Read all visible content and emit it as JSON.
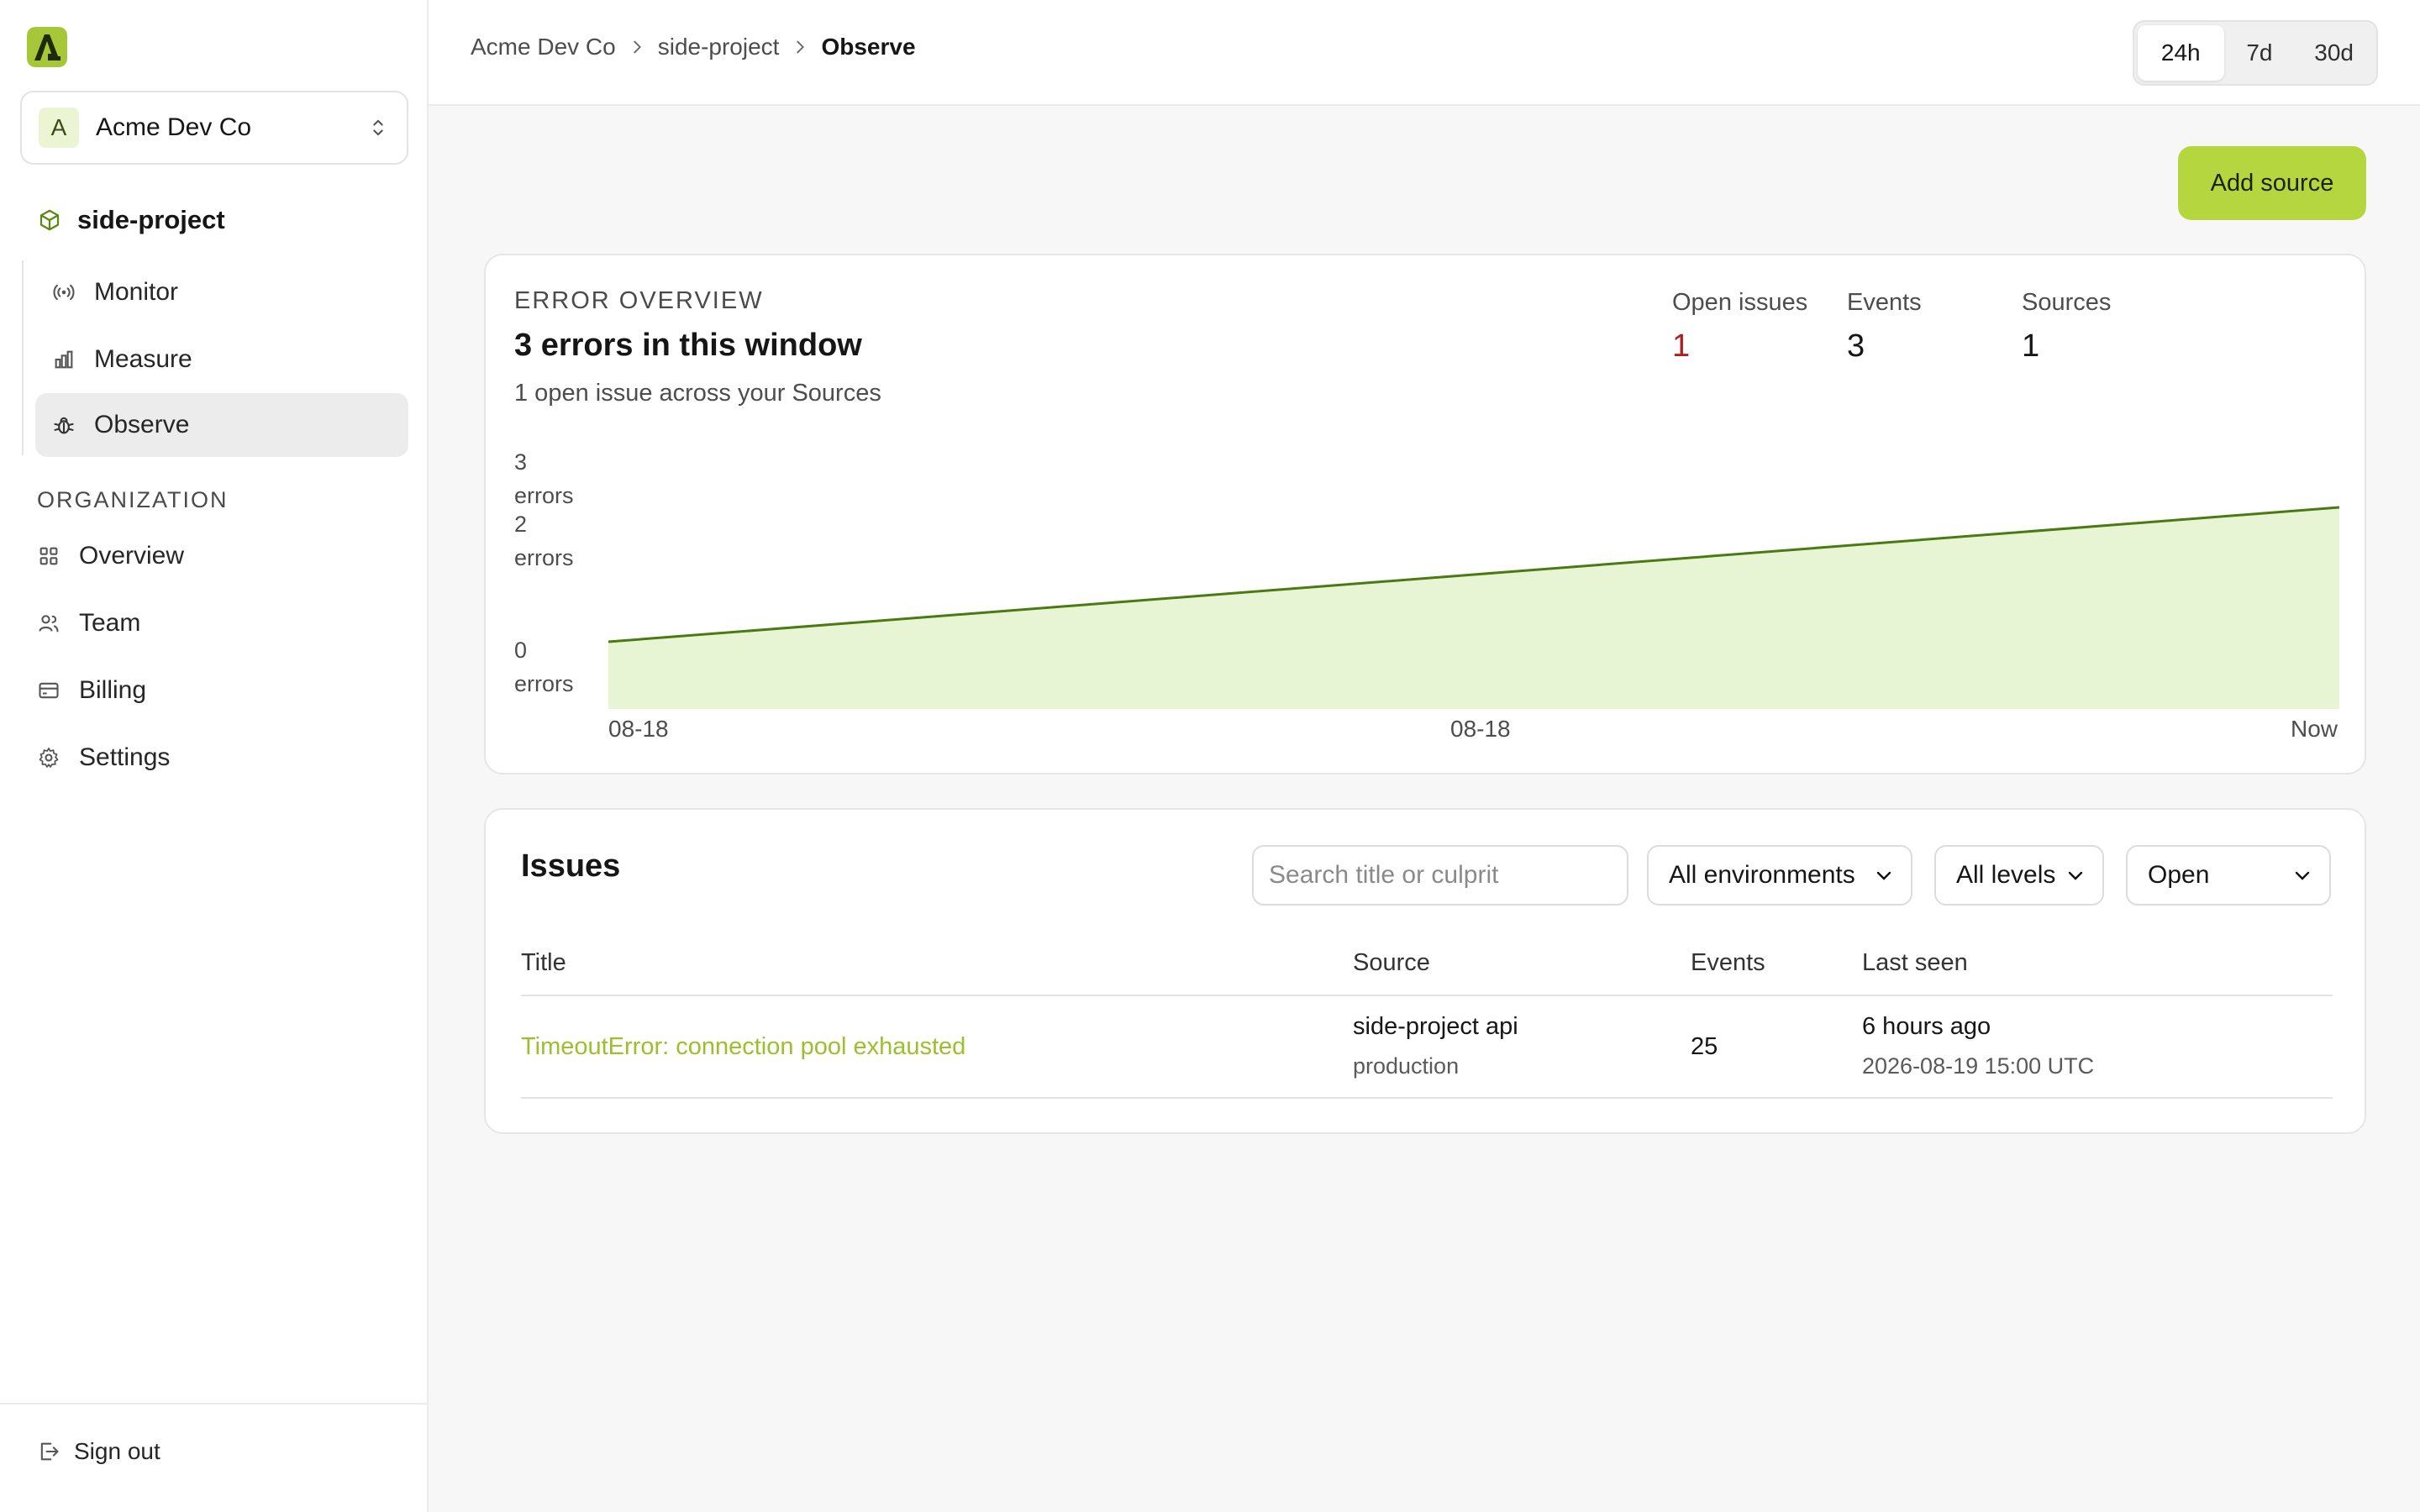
{
  "org": {
    "avatar_letter": "A",
    "name": "Acme Dev Co"
  },
  "project": {
    "name": "side-project"
  },
  "nav": {
    "project_items": [
      {
        "label": "Monitor",
        "icon": "broadcast-icon"
      },
      {
        "label": "Measure",
        "icon": "bar-chart-icon"
      },
      {
        "label": "Observe",
        "icon": "bug-icon",
        "active": true
      }
    ],
    "section_label": "ORGANIZATION",
    "org_items": [
      {
        "label": "Overview",
        "icon": "grid-icon"
      },
      {
        "label": "Team",
        "icon": "users-icon"
      },
      {
        "label": "Billing",
        "icon": "credit-card-icon"
      },
      {
        "label": "Settings",
        "icon": "gear-icon"
      }
    ],
    "signout_label": "Sign out"
  },
  "breadcrumb": [
    "Acme Dev Co",
    "side-project",
    "Observe"
  ],
  "time_range": {
    "options": [
      "24h",
      "7d",
      "30d"
    ],
    "selected": "24h"
  },
  "add_source_label": "Add source",
  "overview": {
    "label": "ERROR OVERVIEW",
    "title": "3 errors in this window",
    "subtitle": "1 open issue across your Sources",
    "stats": [
      {
        "label": "Open issues",
        "value": "1",
        "highlight": true
      },
      {
        "label": "Events",
        "value": "3"
      },
      {
        "label": "Sources",
        "value": "1"
      }
    ]
  },
  "chart_data": {
    "type": "area",
    "x": [
      "08-18",
      "08-18",
      "Now"
    ],
    "y_tick_labels": [
      "3 errors",
      "2 errors",
      "0 errors"
    ],
    "series": [
      {
        "values": [
          1,
          2,
          3
        ]
      }
    ],
    "ylim": [
      0,
      3.5
    ],
    "grid": false,
    "line_color": "#4a7a12",
    "fill_color": "#e8f5d4"
  },
  "issues": {
    "title": "Issues",
    "search_placeholder": "Search title or culprit",
    "filters": {
      "environment": "All environments",
      "level": "All levels",
      "status": "Open"
    },
    "columns": [
      "Title",
      "Source",
      "Events",
      "Last seen"
    ],
    "rows": [
      {
        "title": "TimeoutError: connection pool exhausted",
        "source": "side-project api",
        "environment": "production",
        "events": "25",
        "last_seen": "6 hours ago",
        "last_seen_ts": "2026-08-19 15:00 UTC"
      }
    ]
  },
  "colors": {
    "accent": "#b5d63f",
    "link": "#9cbf2e",
    "error": "#b01e1e"
  }
}
